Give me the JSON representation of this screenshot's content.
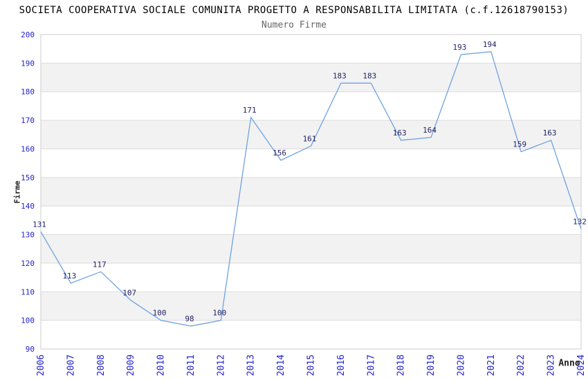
{
  "chart_data": {
    "type": "line",
    "title": "SOCIETA COOPERATIVA SOCIALE COMUNITA PROGETTO A RESPONSABILITA LIMITATA (c.f.12618790153)",
    "subtitle": "Numero Firme",
    "xlabel": "Anno",
    "ylabel": "Firme",
    "categories": [
      "2006",
      "2007",
      "2008",
      "2009",
      "2010",
      "2011",
      "2012",
      "2013",
      "2014",
      "2015",
      "2016",
      "2017",
      "2018",
      "2019",
      "2020",
      "2021",
      "2022",
      "2023",
      "2024"
    ],
    "values": [
      131,
      113,
      117,
      107,
      100,
      98,
      100,
      171,
      156,
      161,
      183,
      183,
      163,
      164,
      193,
      194,
      159,
      163,
      132
    ],
    "ylim": [
      90,
      200
    ],
    "ytick_step": 10,
    "grid": true,
    "legend": "none",
    "band_style": "alternating-horizontal",
    "colors": {
      "line": "#6da2e0",
      "tick_label": "#2222cc",
      "value_label": "#222266",
      "band": "#f2f2f2",
      "gridline": "#dcdcdc",
      "border": "#cccccc",
      "title": "#000000",
      "subtitle": "#666666",
      "axis_title": "#222222",
      "background": "#ffffff"
    }
  }
}
